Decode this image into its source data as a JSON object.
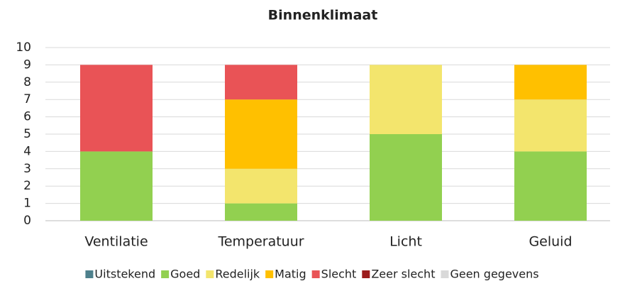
{
  "chart_data": {
    "type": "stacked_bar",
    "title": "Binnenklimaat",
    "categories": [
      "Ventilatie",
      "Temperatuur",
      "Licht",
      "Geluid"
    ],
    "series": [
      {
        "name": "Uitstekend",
        "color": "#4e808c",
        "values": [
          0,
          0,
          0,
          0
        ]
      },
      {
        "name": "Goed",
        "color": "#92d050",
        "values": [
          4,
          1,
          5,
          4
        ]
      },
      {
        "name": "Redelijk",
        "color": "#f3e56d",
        "values": [
          0,
          2,
          4,
          3
        ]
      },
      {
        "name": "Matig",
        "color": "#ffc000",
        "values": [
          0,
          4,
          0,
          2
        ]
      },
      {
        "name": "Slecht",
        "color": "#e95356",
        "values": [
          5,
          2,
          0,
          0
        ]
      },
      {
        "name": "Zeer slecht",
        "color": "#9b1c1c",
        "values": [
          0,
          0,
          0,
          0
        ]
      },
      {
        "name": "Geen gegevens",
        "color": "#d9d9d9",
        "values": [
          0,
          0,
          0,
          0
        ]
      }
    ],
    "ylim": [
      0,
      10
    ],
    "yticks": [
      0,
      1,
      2,
      3,
      4,
      5,
      6,
      7,
      8,
      9,
      10
    ],
    "grid": true,
    "legend": "bottom"
  }
}
